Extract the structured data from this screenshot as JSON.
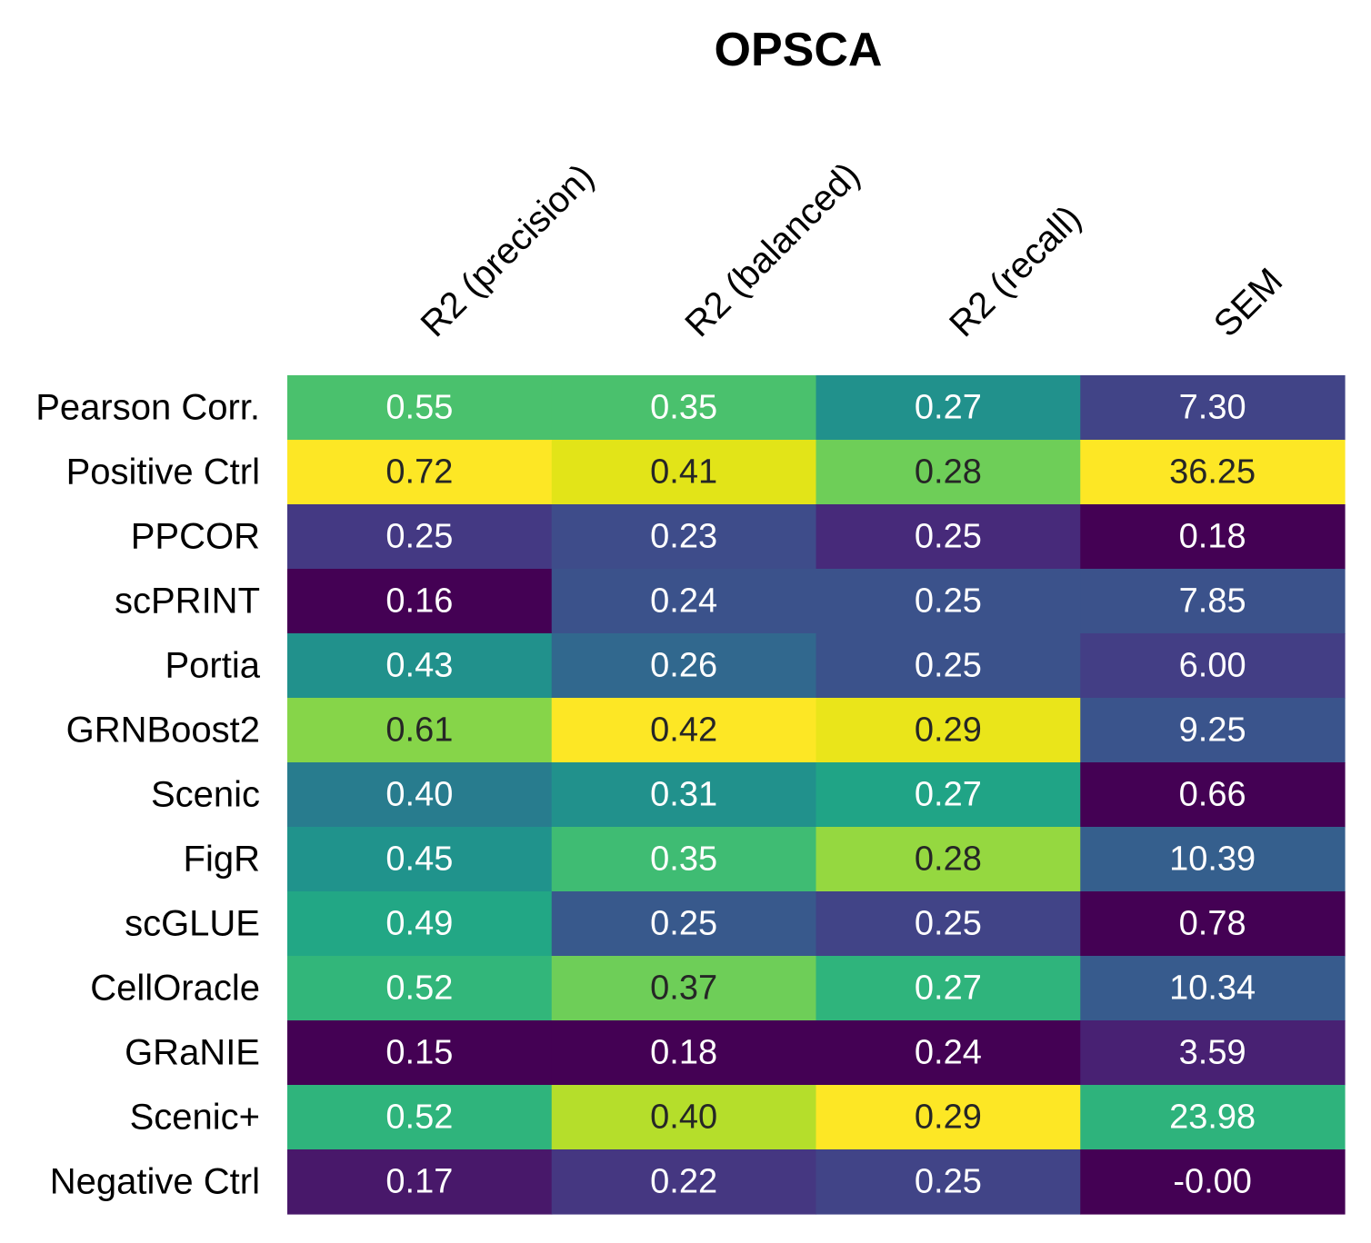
{
  "chart_data": {
    "type": "heatmap",
    "title": "OPSCA",
    "columns": [
      "R2 (precision)",
      "R2 (balanced)",
      "R2 (recall)",
      "SEM"
    ],
    "rows": [
      "Pearson Corr.",
      "Positive Ctrl",
      "PPCOR",
      "scPRINT",
      "Portia",
      "GRNBoost2",
      "Scenic",
      "FigR",
      "scGLUE",
      "CellOracle",
      "GRaNIE",
      "Scenic+",
      "Negative Ctrl"
    ],
    "values": [
      [
        "0.55",
        "0.35",
        "0.27",
        "7.30"
      ],
      [
        "0.72",
        "0.41",
        "0.28",
        "36.25"
      ],
      [
        "0.25",
        "0.23",
        "0.25",
        "0.18"
      ],
      [
        "0.16",
        "0.24",
        "0.25",
        "7.85"
      ],
      [
        "0.43",
        "0.26",
        "0.25",
        "6.00"
      ],
      [
        "0.61",
        "0.42",
        "0.29",
        "9.25"
      ],
      [
        "0.40",
        "0.31",
        "0.27",
        "0.66"
      ],
      [
        "0.45",
        "0.35",
        "0.28",
        "10.39"
      ],
      [
        "0.49",
        "0.25",
        "0.25",
        "0.78"
      ],
      [
        "0.52",
        "0.37",
        "0.27",
        "10.34"
      ],
      [
        "0.15",
        "0.18",
        "0.24",
        "3.59"
      ],
      [
        "0.52",
        "0.40",
        "0.29",
        "23.98"
      ],
      [
        "0.17",
        "0.22",
        "0.25",
        "-0.00"
      ]
    ],
    "cell_colors": [
      [
        "#4AC16D",
        "#4AC16D",
        "#21918C",
        "#414487"
      ],
      [
        "#FDE725",
        "#E2E418",
        "#6ECE58",
        "#FDE725"
      ],
      [
        "#443983",
        "#3E4C8A",
        "#472A7A",
        "#440154"
      ],
      [
        "#440154",
        "#3B528B",
        "#3B528B",
        "#3B528B"
      ],
      [
        "#21918C",
        "#31688E",
        "#3B528B",
        "#433E85"
      ],
      [
        "#86D549",
        "#FDE725",
        "#EAE51A",
        "#3A548C"
      ],
      [
        "#287C8E",
        "#21918C",
        "#20A486",
        "#440154"
      ],
      [
        "#20938C",
        "#3FBC73",
        "#95D840",
        "#355F8D"
      ],
      [
        "#22A785",
        "#38598C",
        "#414487",
        "#440154"
      ],
      [
        "#32B67A",
        "#6ECE58",
        "#2FB47C",
        "#375B8D"
      ],
      [
        "#440154",
        "#440154",
        "#440154",
        "#482173"
      ],
      [
        "#2FB47C",
        "#B5DE2B",
        "#FDE725",
        "#2EB37C"
      ],
      [
        "#48186A",
        "#453781",
        "#414487",
        "#440154"
      ]
    ],
    "text_colors": [
      [
        "#FFFFFF",
        "#FFFFFF",
        "#FFFFFF",
        "#FFFFFF"
      ],
      [
        "#262626",
        "#262626",
        "#262626",
        "#262626"
      ],
      [
        "#FFFFFF",
        "#FFFFFF",
        "#FFFFFF",
        "#FFFFFF"
      ],
      [
        "#FFFFFF",
        "#FFFFFF",
        "#FFFFFF",
        "#FFFFFF"
      ],
      [
        "#FFFFFF",
        "#FFFFFF",
        "#FFFFFF",
        "#FFFFFF"
      ],
      [
        "#262626",
        "#262626",
        "#262626",
        "#FFFFFF"
      ],
      [
        "#FFFFFF",
        "#FFFFFF",
        "#FFFFFF",
        "#FFFFFF"
      ],
      [
        "#FFFFFF",
        "#FFFFFF",
        "#262626",
        "#FFFFFF"
      ],
      [
        "#FFFFFF",
        "#FFFFFF",
        "#FFFFFF",
        "#FFFFFF"
      ],
      [
        "#FFFFFF",
        "#262626",
        "#FFFFFF",
        "#FFFFFF"
      ],
      [
        "#FFFFFF",
        "#FFFFFF",
        "#FFFFFF",
        "#FFFFFF"
      ],
      [
        "#FFFFFF",
        "#262626",
        "#262626",
        "#FFFFFF"
      ],
      [
        "#FFFFFF",
        "#FFFFFF",
        "#FFFFFF",
        "#FFFFFF"
      ]
    ],
    "colormap": "viridis (per column)",
    "grid": false,
    "legend": "none"
  }
}
